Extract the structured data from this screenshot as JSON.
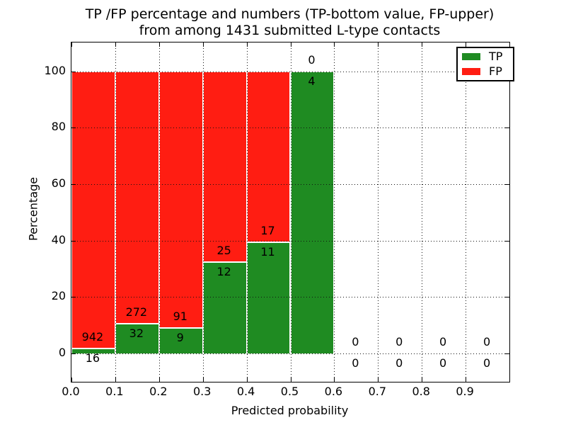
{
  "figure": {
    "background": "#ffffff",
    "text_color": "#000000"
  },
  "chart_data": {
    "type": "bar",
    "stacked": true,
    "title_line1": "TP /FP percentage and numbers (TP-bottom value, FP-upper)",
    "title_line2": "from among 1431 submitted L-type contacts",
    "xlabel": "Predicted probability",
    "ylabel": "Percentage",
    "xlim": [
      0.0,
      1.0
    ],
    "ylim": [
      -10,
      110
    ],
    "grid": "dotted",
    "axis_color": "#000000",
    "bar_edge_color": "#ffffff",
    "legend_position": "upper right",
    "x_tick_labels": [
      "0.0",
      "0.1",
      "0.2",
      "0.3",
      "0.4",
      "0.5",
      "0.6",
      "0.7",
      "0.8",
      "0.9"
    ],
    "y_tick_values": [
      0,
      20,
      40,
      60,
      80,
      100
    ],
    "y_tick_labels": [
      "0",
      "20",
      "40",
      "60",
      "80",
      "100"
    ],
    "series": [
      {
        "name": "TP",
        "color": "#1f8b22",
        "position": "bottom"
      },
      {
        "name": "FP",
        "color": "#ff1d12",
        "position": "top"
      }
    ],
    "bins": [
      {
        "range": [
          0.0,
          0.1
        ],
        "tp": 16,
        "fp": 942,
        "tp_pct": 1.67
      },
      {
        "range": [
          0.1,
          0.2
        ],
        "tp": 32,
        "fp": 272,
        "tp_pct": 10.53
      },
      {
        "range": [
          0.2,
          0.3
        ],
        "tp": 9,
        "fp": 91,
        "tp_pct": 9.0
      },
      {
        "range": [
          0.3,
          0.4
        ],
        "tp": 12,
        "fp": 25,
        "tp_pct": 32.43
      },
      {
        "range": [
          0.4,
          0.5
        ],
        "tp": 11,
        "fp": 17,
        "tp_pct": 39.29
      },
      {
        "range": [
          0.5,
          0.6
        ],
        "tp": 4,
        "fp": 0,
        "tp_pct": 100.0
      },
      {
        "range": [
          0.6,
          0.7
        ],
        "tp": 0,
        "fp": 0,
        "tp_pct": 0.0
      },
      {
        "range": [
          0.7,
          0.8
        ],
        "tp": 0,
        "fp": 0,
        "tp_pct": 0.0
      },
      {
        "range": [
          0.8,
          0.9
        ],
        "tp": 0,
        "fp": 0,
        "tp_pct": 0.0
      },
      {
        "range": [
          0.9,
          1.0
        ],
        "tp": 0,
        "fp": 0,
        "tp_pct": 0.0
      }
    ]
  }
}
